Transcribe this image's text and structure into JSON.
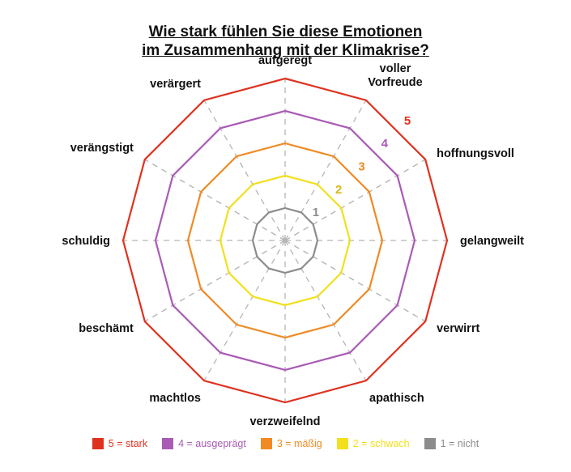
{
  "title": {
    "line1": "Wie stark fühlen Sie diese Emotionen",
    "line2": "im Zusammenhang mit der Klimakrise?"
  },
  "axes": [
    {
      "label_lines": [
        "aufgeregt"
      ]
    },
    {
      "label_lines": [
        "voller",
        "Vorfreude"
      ]
    },
    {
      "label_lines": [
        "hoffnungsvoll"
      ]
    },
    {
      "label_lines": [
        "gelangweilt"
      ]
    },
    {
      "label_lines": [
        "verwirrt"
      ]
    },
    {
      "label_lines": [
        "apathisch"
      ]
    },
    {
      "label_lines": [
        "verzweifelnd"
      ]
    },
    {
      "label_lines": [
        "machtlos"
      ]
    },
    {
      "label_lines": [
        "beschämt"
      ]
    },
    {
      "label_lines": [
        "schuldig"
      ]
    },
    {
      "label_lines": [
        "verängstigt"
      ]
    },
    {
      "label_lines": [
        "verärgert"
      ]
    }
  ],
  "levels": [
    {
      "value": 1,
      "label": "1",
      "color": "#8c8c8c",
      "legend": "1 = nicht"
    },
    {
      "value": 2,
      "label": "2",
      "color": "#f2e01c",
      "legend": "2 = schwach"
    },
    {
      "value": 3,
      "label": "3",
      "color": "#f08a24",
      "legend": "3 = mäßig"
    },
    {
      "value": 4,
      "label": "4",
      "color": "#a95bb5",
      "legend": "4 = ausgeprägt"
    },
    {
      "value": 5,
      "label": "5",
      "color": "#e0311f",
      "legend": "5 = stark"
    }
  ],
  "scale_label_colors": {
    "1": "#8c8c8c",
    "2": "#d9b81a",
    "3": "#f08a24",
    "4": "#a95bb5",
    "5": "#e0311f"
  },
  "legend_order": [
    4,
    3,
    2,
    1,
    0
  ]
}
